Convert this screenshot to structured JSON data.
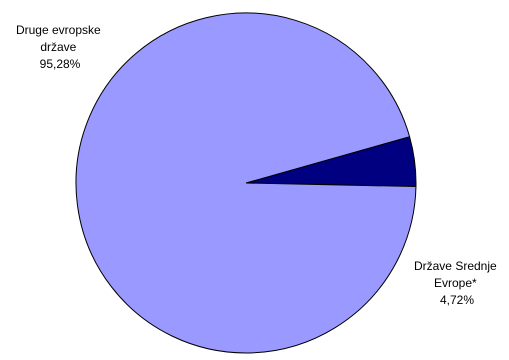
{
  "chart_data": {
    "type": "pie",
    "title": "",
    "start_angle_deg": 15.8,
    "direction": "clockwise",
    "border_color": "#000000",
    "slices": [
      {
        "label_lines": [
          "Države Srednje",
          "Evrope*"
        ],
        "value_text": "4,72%",
        "value": 4.72,
        "color": "#000080"
      },
      {
        "label_lines": [
          "Druge evropske",
          "države"
        ],
        "value_text": "95,28%",
        "value": 95.28,
        "color": "#9999ff"
      }
    ]
  }
}
